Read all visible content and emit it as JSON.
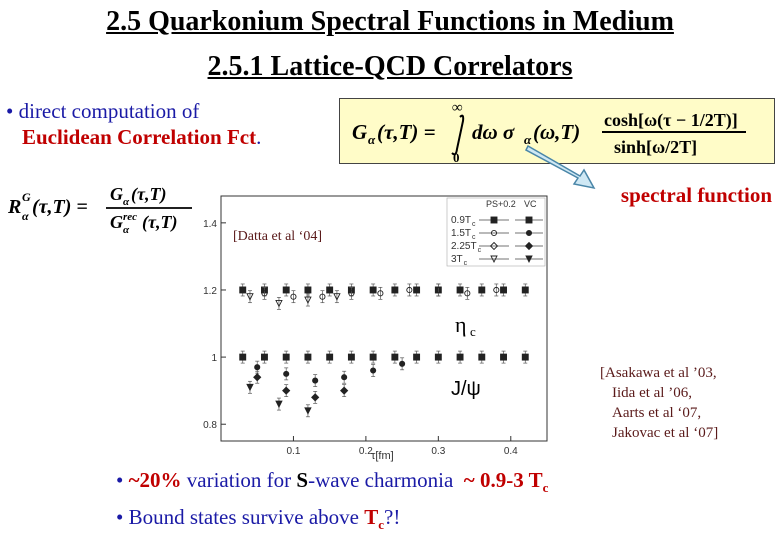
{
  "title": {
    "line1": "2.5 Quarkonium Spectral Functions in Medium",
    "line2": "2.5.1 Lattice-QCD Correlators"
  },
  "bullet_direct": {
    "bullet": "•",
    "text1": " direct computation of",
    "text2_highlight": "Euclidean Correlation Fct",
    "text2_end": "."
  },
  "formula_main": {
    "lhs": "G",
    "sub": "α",
    "args": "(τ,T) =",
    "upper": "∞",
    "lower": "0",
    "integrand": "dω σ",
    "integrand_sub": "α",
    "integrand_args": "(ω,T)",
    "numerator": "cosh[ω(τ − 1/2T)]",
    "denominator": "sinh[ω/2T]"
  },
  "formula_ratio": {
    "lhs": "R",
    "lhs_sup": "G",
    "lhs_sub": "α",
    "lhs_args": "(τ,T) =",
    "num": "G",
    "num_sub": "α",
    "num_args": "(τ,T)",
    "den": "G",
    "den_sub": "α",
    "den_sup": "rec",
    "den_args": "(τ,T)"
  },
  "spectral_label": "spectral function",
  "plot": {
    "datta_ref": "[Datta et al ‘04]",
    "y_ticks": [
      "1.4",
      "1.2",
      "1",
      "0.8"
    ],
    "x_ticks": [
      "0.1",
      "0.2",
      "0.3",
      "0.4"
    ],
    "x_label": "τ[fm]",
    "legend_header": [
      "PS+0.2",
      "VC"
    ],
    "legend_rows": [
      "0.9T",
      "1.5T",
      "2.25T",
      "3T"
    ],
    "legend_sub": "c",
    "eta_label": "η",
    "eta_sub": "c",
    "jpsi_label": "J/ψ"
  },
  "citations": [
    "[Asakawa et al ’03,",
    "Iida et al ’06,",
    "Aarts et al ‘07,",
    "Jakovac et al ‘07]"
  ],
  "bottom": {
    "b1_bullet": "•",
    "b1_pct": "~20%",
    "b1_mid": " variation for ",
    "b1_s": "S",
    "b1_mid2": "-wave charmonia",
    "b1_range": "~ 0.9-3 T",
    "b1_sub": "c",
    "b2_bullet": "•",
    "b2_text": " Bound states survive above ",
    "b2_T": "T",
    "b2_sub": "c",
    "b2_end": "?!"
  },
  "chart_data": {
    "type": "scatter",
    "xlim": [
      0.0,
      0.45
    ],
    "ylim": [
      0.75,
      1.48
    ],
    "xlabel": "τ[fm]",
    "series": [
      {
        "name": "0.9T_c",
        "group": "PS+0.2",
        "x": [
          0.03,
          0.06,
          0.09,
          0.12,
          0.15,
          0.18,
          0.21,
          0.24,
          0.27,
          0.3,
          0.33,
          0.36,
          0.39,
          0.42
        ],
        "y": [
          1.2,
          1.2,
          1.2,
          1.2,
          1.2,
          1.2,
          1.2,
          1.2,
          1.2,
          1.2,
          1.2,
          1.2,
          1.2,
          1.2
        ]
      },
      {
        "name": "1.5T_c",
        "group": "PS+0.2",
        "x": [
          0.06,
          0.1,
          0.14,
          0.18,
          0.22,
          0.26,
          0.3,
          0.34,
          0.38
        ],
        "y": [
          1.19,
          1.18,
          1.18,
          1.19,
          1.19,
          1.2,
          1.2,
          1.19,
          1.2
        ]
      },
      {
        "name": "3T_c",
        "group": "PS+0.2",
        "x": [
          0.04,
          0.08,
          0.12,
          0.16
        ],
        "y": [
          1.18,
          1.16,
          1.17,
          1.18
        ]
      },
      {
        "name": "0.9T_c",
        "group": "VC",
        "x": [
          0.03,
          0.06,
          0.09,
          0.12,
          0.15,
          0.18,
          0.21,
          0.24,
          0.27,
          0.3,
          0.33,
          0.36,
          0.39,
          0.42
        ],
        "y": [
          1.0,
          1.0,
          1.0,
          1.0,
          1.0,
          1.0,
          1.0,
          1.0,
          1.0,
          1.0,
          1.0,
          1.0,
          1.0,
          1.0
        ]
      },
      {
        "name": "1.5T_c",
        "group": "VC",
        "x": [
          0.05,
          0.09,
          0.13,
          0.17,
          0.21,
          0.25
        ],
        "y": [
          0.97,
          0.95,
          0.93,
          0.94,
          0.96,
          0.98
        ]
      },
      {
        "name": "2.25T_c",
        "group": "VC",
        "x": [
          0.05,
          0.09,
          0.13,
          0.17
        ],
        "y": [
          0.94,
          0.9,
          0.88,
          0.9
        ]
      },
      {
        "name": "3T_c",
        "group": "VC",
        "x": [
          0.04,
          0.08,
          0.12
        ],
        "y": [
          0.91,
          0.86,
          0.84
        ]
      }
    ]
  }
}
